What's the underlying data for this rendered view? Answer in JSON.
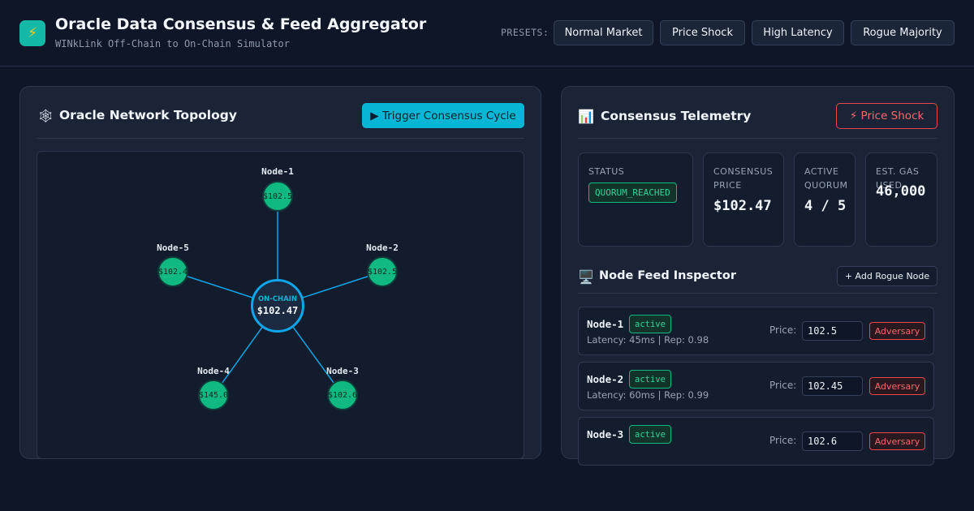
{
  "header": {
    "logo_icon": "⚡",
    "title": "Oracle Data Consensus & Feed Aggregator",
    "subtitle": "WINkLink Off-Chain to On-Chain Simulator",
    "presets_label": "PRESETS:",
    "presets": [
      "Normal Market",
      "Price Shock",
      "High Latency",
      "Rogue Majority"
    ]
  },
  "topology": {
    "icon": "🕸",
    "title": "Oracle Network Topology",
    "trigger_label": "▶ Trigger Consensus Cycle",
    "onchain": {
      "label": "ON-CHAIN",
      "value": "$102.47"
    },
    "nodes": [
      {
        "name": "Node-1",
        "value": "$102.5"
      },
      {
        "name": "Node-2",
        "value": "$102.5"
      },
      {
        "name": "Node-3",
        "value": "$102.6"
      },
      {
        "name": "Node-4",
        "value": "$145.0"
      },
      {
        "name": "Node-5",
        "value": "$102.4"
      }
    ]
  },
  "telemetry": {
    "icon": "📊",
    "title": "Consensus Telemetry",
    "shock_label": "⚡ Price Shock",
    "stats": [
      {
        "label": "STATUS",
        "value": "QUORUM_REACHED"
      },
      {
        "label": "CONSENSUS PRICE",
        "value": "$102.47"
      },
      {
        "label": "ACTIVE QUORUM",
        "value": "4 / 5"
      },
      {
        "label": "EST. GAS USED",
        "value": "46,000"
      }
    ]
  },
  "inspector": {
    "icon": "🖥️",
    "title": "Node Feed Inspector",
    "add_label": "+ Add Rogue Node",
    "price_label": "Price:",
    "adversary_label": "Adversary",
    "nodes": [
      {
        "name": "Node-1",
        "status": "active",
        "meta": "Latency: 45ms | Rep: 0.98",
        "price": "102.5"
      },
      {
        "name": "Node-2",
        "status": "active",
        "meta": "Latency: 60ms | Rep: 0.99",
        "price": "102.45"
      },
      {
        "name": "Node-3",
        "status": "active",
        "meta": "",
        "price": "102.6"
      }
    ]
  }
}
